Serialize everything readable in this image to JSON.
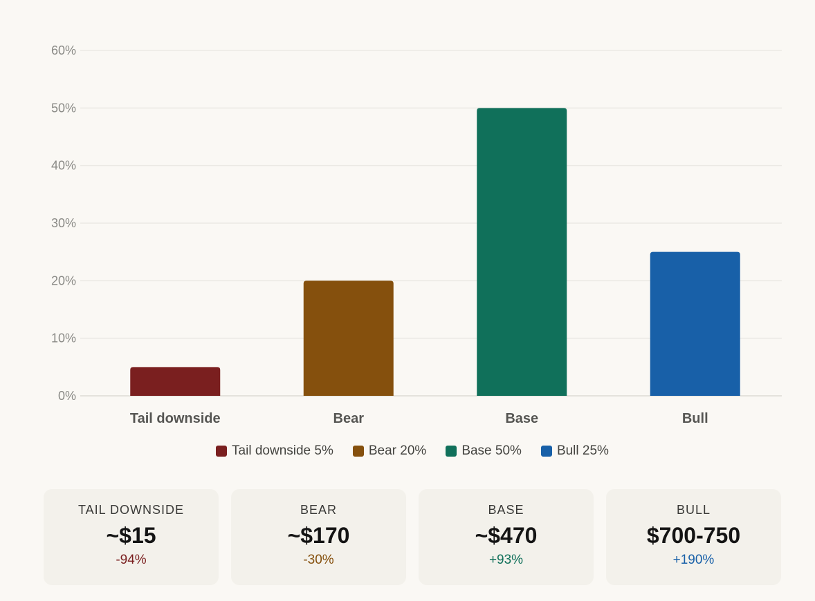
{
  "chart_data": {
    "type": "bar",
    "categories": [
      "Tail downside",
      "Bear",
      "Base",
      "Bull"
    ],
    "values": [
      5,
      20,
      50,
      25
    ],
    "colors": [
      "#7a1f1f",
      "#85500d",
      "#10705a",
      "#1860a8"
    ],
    "ylim": [
      0,
      60
    ],
    "yticks": [
      0,
      10,
      20,
      30,
      40,
      50,
      60
    ],
    "ytick_suffix": "%",
    "grid": true,
    "legend_position": "bottom",
    "legend": [
      "Tail downside 5%",
      "Bear 20%",
      "Base 50%",
      "Bull 25%"
    ]
  },
  "cards": [
    {
      "title": "TAIL DOWNSIDE",
      "price": "~$15",
      "change": "-94%",
      "color": "#7a1f1f"
    },
    {
      "title": "BEAR",
      "price": "~$170",
      "change": "-30%",
      "color": "#85500d"
    },
    {
      "title": "BASE",
      "price": "~$470",
      "change": "+93%",
      "color": "#10705a"
    },
    {
      "title": "BULL",
      "price": "$700-750",
      "change": "+190%",
      "color": "#1860a8"
    }
  ]
}
